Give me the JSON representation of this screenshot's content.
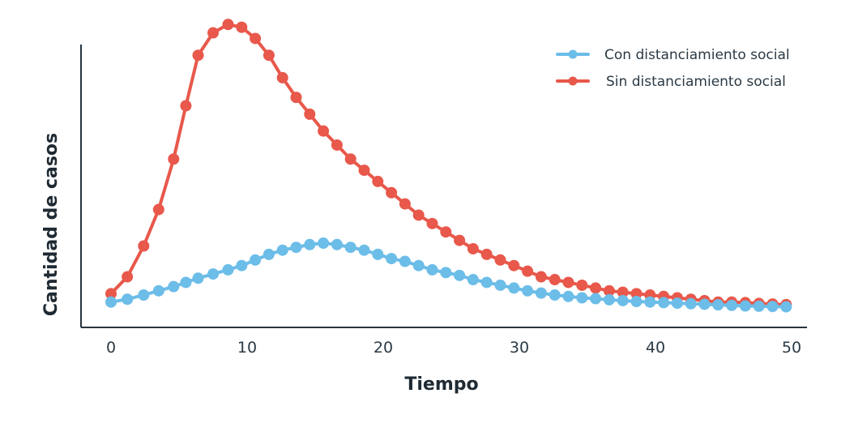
{
  "chart_data": {
    "type": "line",
    "title": "",
    "xlabel": "Tiempo",
    "ylabel": "Cantidad de casos",
    "xlim": [
      0,
      50
    ],
    "ylim": [
      0,
      100
    ],
    "xticks": [
      "0",
      "10",
      "20",
      "30",
      "40",
      "50"
    ],
    "grid": false,
    "legend_position": "top-right",
    "x": [
      0,
      1.2,
      2.4,
      3.5,
      4.6,
      5.5,
      6.4,
      7.5,
      8.6,
      9.6,
      10.6,
      11.6,
      12.6,
      13.6,
      14.6,
      15.6,
      16.6,
      17.6,
      18.6,
      19.6,
      20.6,
      21.6,
      22.6,
      23.6,
      24.6,
      25.6,
      26.6,
      27.6,
      28.6,
      29.6,
      30.6,
      31.6,
      32.6,
      33.6,
      34.6,
      35.6,
      36.6,
      37.6,
      38.6,
      39.6,
      40.6,
      41.6,
      42.6,
      43.6,
      44.6,
      45.6,
      46.6,
      47.6,
      48.6,
      49.6
    ],
    "series": [
      {
        "name": "Sin distanciamiento social",
        "color": "#e8584b",
        "values": [
          8,
          14,
          25,
          38,
          56,
          75,
          93,
          101,
          104,
          103,
          99,
          93,
          85,
          78,
          72,
          66,
          61,
          56,
          52,
          48,
          44,
          40,
          36,
          33,
          30,
          27,
          24,
          22,
          20,
          18,
          16,
          14,
          13,
          12,
          11,
          10,
          9,
          8.5,
          8,
          7.5,
          7,
          6.5,
          6,
          5.5,
          5,
          5,
          4.8,
          4.5,
          4.3,
          4.1
        ]
      },
      {
        "name": "Con distanciamiento social",
        "color": "#6cbde8",
        "values": [
          5,
          6,
          7.5,
          9,
          10.5,
          12,
          13.5,
          15,
          16.5,
          18,
          20,
          22,
          23.5,
          24.5,
          25.5,
          26,
          25.5,
          24.5,
          23.5,
          22,
          20.5,
          19.5,
          18,
          16.5,
          15.5,
          14.5,
          13,
          12,
          11,
          10,
          9,
          8.2,
          7.5,
          7,
          6.5,
          6.2,
          5.8,
          5.5,
          5.2,
          5,
          4.8,
          4.6,
          4.4,
          4.2,
          4,
          3.8,
          3.6,
          3.5,
          3.4,
          3.3
        ]
      }
    ]
  }
}
